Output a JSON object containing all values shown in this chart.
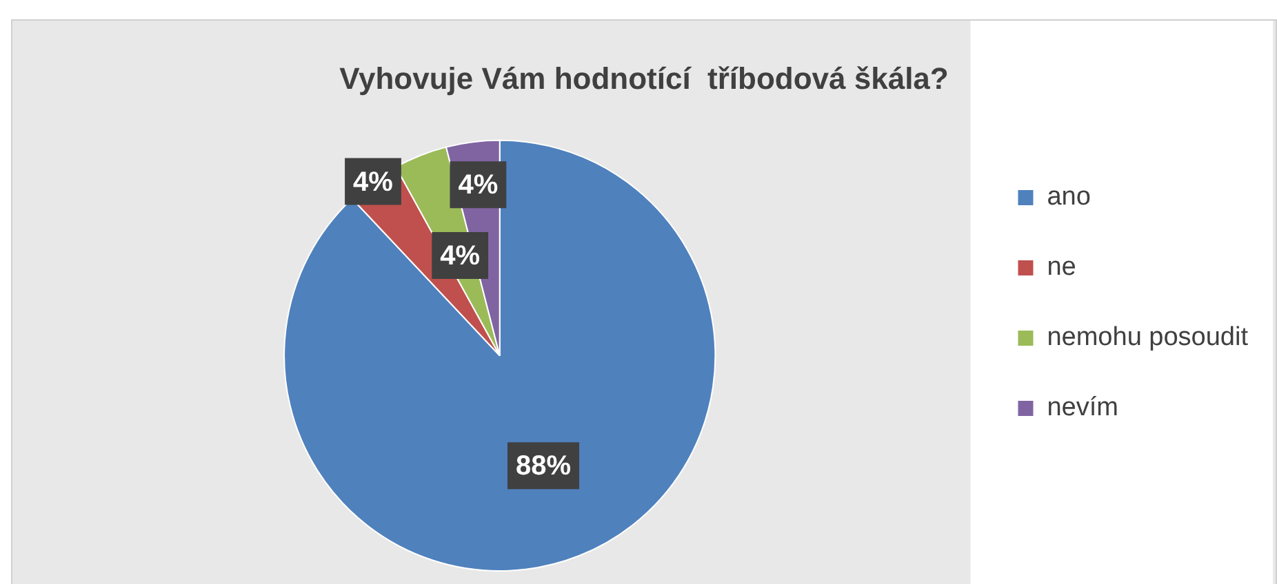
{
  "chart_data": {
    "type": "pie",
    "title": "Vyhovuje Vám hodnotící  tříbodová škála?",
    "categories": [
      "ano",
      "ne",
      "nemohu posoudit",
      "nevím"
    ],
    "values": [
      88,
      4,
      4,
      4
    ],
    "colors": [
      "#4f81bd",
      "#c0504d",
      "#9bbb59",
      "#8064a2"
    ],
    "value_labels": [
      "88%",
      "4%",
      "4%",
      "4%"
    ],
    "legend": "right"
  }
}
